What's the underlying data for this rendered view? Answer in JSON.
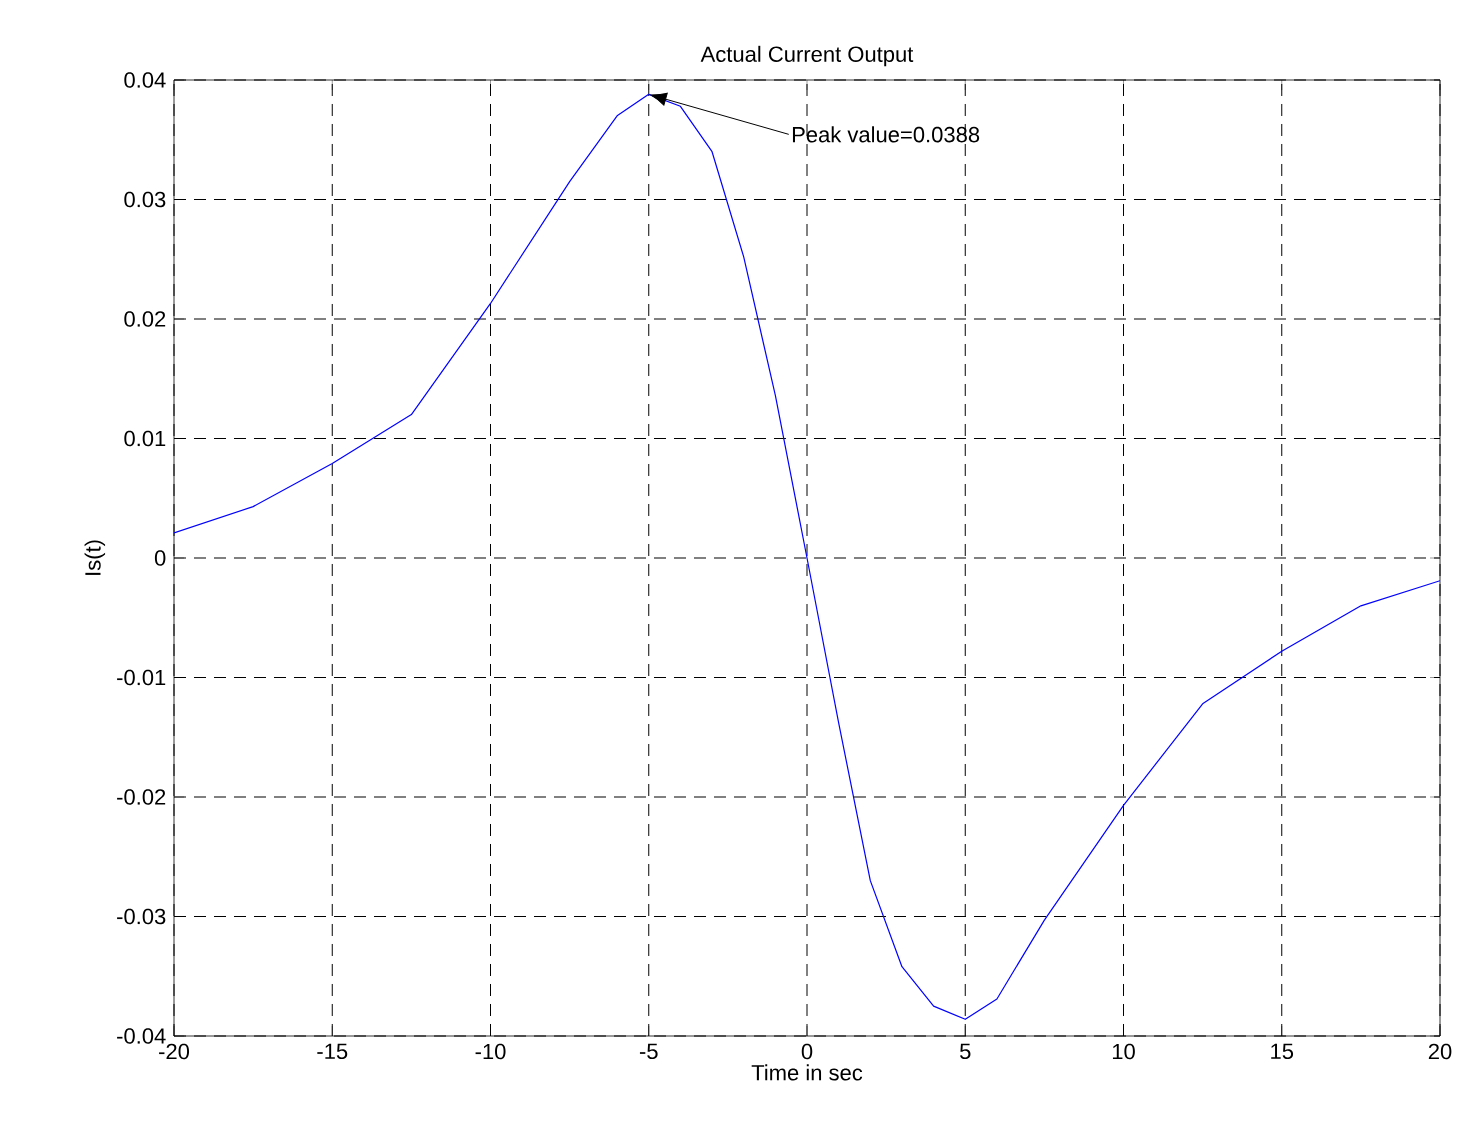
{
  "chart_data": {
    "type": "line",
    "title": "Actual Current Output",
    "xlabel": "Time in sec",
    "ylabel": "Is(t)",
    "x": [
      -20,
      -17.5,
      -15,
      -12.5,
      -10,
      -7.5,
      -6,
      -5,
      -4,
      -3,
      -2,
      -1,
      0,
      1,
      2,
      3,
      4,
      5,
      6,
      7.5,
      10,
      12.5,
      15,
      17.5,
      20
    ],
    "series": [
      {
        "color": "#0000ff",
        "values": [
          0.0021,
          0.0043,
          0.0079,
          0.012,
          0.0213,
          0.0315,
          0.037,
          0.0388,
          0.0378,
          0.034,
          0.0252,
          0.0136,
          0,
          -0.0138,
          -0.027,
          -0.0342,
          -0.0375,
          -0.0386,
          -0.0369,
          -0.0303,
          -0.0207,
          -0.0122,
          -0.0078,
          -0.004,
          -0.0019
        ]
      }
    ],
    "xlim": [
      -20,
      20
    ],
    "ylim": [
      -0.04,
      0.04
    ],
    "xticks": [
      -20,
      -15,
      -10,
      -5,
      0,
      5,
      10,
      15,
      20
    ],
    "yticks": [
      -0.04,
      -0.03,
      -0.02,
      -0.01,
      0,
      0.01,
      0.02,
      0.03,
      0.04
    ],
    "grid": true,
    "marker": "none",
    "line_style": "solid",
    "annotations": [
      {
        "text": "Peak value=0.0388",
        "x": -5,
        "y": 0.0388
      }
    ]
  }
}
